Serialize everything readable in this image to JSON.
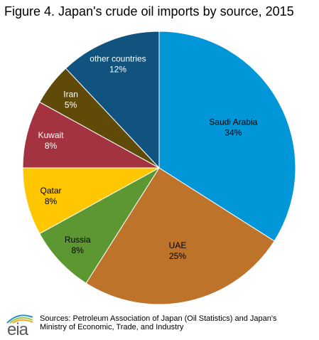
{
  "title": "Figure 4. Japan's crude oil imports by source, 2015",
  "chart_data": {
    "type": "pie",
    "title": "Figure 4. Japan's crude oil imports by source, 2015",
    "start_angle": "12 o'clock",
    "direction": "clockwise",
    "slices": [
      {
        "label": "Saudi Arabia",
        "value": 34,
        "value_label": "34%",
        "color": "#0096d7",
        "text_color": "#000000"
      },
      {
        "label": "UAE",
        "value": 25,
        "value_label": "25%",
        "color": "#bd732a",
        "text_color": "#000000"
      },
      {
        "label": "Russia",
        "value": 8,
        "value_label": "8%",
        "color": "#5d9732",
        "text_color": "#000000"
      },
      {
        "label": "Qatar",
        "value": 8,
        "value_label": "8%",
        "color": "#ffc702",
        "text_color": "#000000"
      },
      {
        "label": "Kuwait",
        "value": 8,
        "value_label": "8%",
        "color": "#a33340",
        "text_color": "#ffffff"
      },
      {
        "label": "Iran",
        "value": 5,
        "value_label": "5%",
        "color": "#5f4b07",
        "text_color": "#ffffff"
      },
      {
        "label": "other countries",
        "value": 12,
        "value_label": "12%",
        "color": "#10537e",
        "text_color": "#ffffff"
      }
    ]
  },
  "footer": {
    "logo_text": "eia",
    "sources_line1": "Sources: Petroleum Association of Japan (Oil Statistics) and Japan's",
    "sources_line2": "Ministry of Economic, Trade, and Industry"
  }
}
